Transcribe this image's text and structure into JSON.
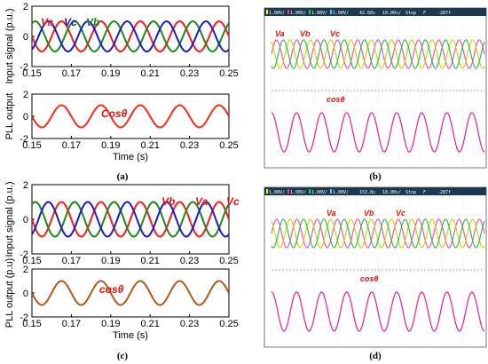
{
  "captions": [
    "(a)",
    "(b)",
    "(c)",
    "(d)"
  ],
  "colors": {
    "Va": "#ff1a1a",
    "Vb": "#1a8a1a",
    "Vc": "#1a1acc",
    "pll_a": "#ff2a1a",
    "pll_c": "#b25a1a",
    "osc_phase1": "#c8d400",
    "osc_phase2": "#ff44aa",
    "osc_phase3": "#22bb44",
    "osc_cos": "#ee1c8c",
    "osc_header": "#1b3a52",
    "label_red": "#ee1111"
  },
  "scope_headers": {
    "b": [
      "1.00V/",
      "1.00V/",
      "1.00V/",
      "1.00V/",
      "42.60s",
      "10.00s/",
      "Stop",
      "F",
      "-287f"
    ],
    "d": [
      "1.00V/",
      "1.00V/",
      "1.00V/",
      "1.00V/",
      "153.8s",
      "10.00s/",
      "Stop",
      "F",
      "-287f"
    ]
  },
  "scope_labels": {
    "b": {
      "top": [
        "Va",
        "Vb",
        "Vc"
      ],
      "bottom": "cosθ"
    },
    "d": {
      "top": [
        "Va",
        "Vb",
        "Vc"
      ],
      "bottom": "cosθ"
    }
  },
  "chart_data": [
    {
      "type": "line",
      "panel": "a-top",
      "xlabel": "",
      "ylabel": "Input signal (p.u.)",
      "xlim": [
        0.15,
        0.25
      ],
      "ylim": [
        -2,
        2
      ],
      "xticks": [
        "0.15",
        "0.17",
        "0.19",
        "0.21",
        "0.23",
        "0.25"
      ],
      "yticks": [
        "-2",
        "0",
        "2"
      ],
      "frequency_hz": 50,
      "series": [
        {
          "name": "Va",
          "amplitude": 1,
          "phase_deg": 0,
          "color": "#ff1a1a"
        },
        {
          "name": "Vb",
          "amplitude": 1,
          "phase_deg": -120,
          "color": "#1a8a1a"
        },
        {
          "name": "Vc",
          "amplitude": 1,
          "phase_deg": 120,
          "color": "#1a1acc"
        }
      ],
      "annotations": [
        "Va",
        "Vc",
        "Vb"
      ]
    },
    {
      "type": "line",
      "panel": "a-bottom",
      "xlabel": "Time (s)",
      "ylabel": "PLL output",
      "xlim": [
        0.15,
        0.25
      ],
      "ylim": [
        -2,
        2
      ],
      "xticks": [
        "0.15",
        "0.17",
        "0.19",
        "0.21",
        "0.23",
        "0.25"
      ],
      "yticks": [
        "-2",
        "0",
        "2"
      ],
      "frequency_hz": 50,
      "series": [
        {
          "name": "Cosθ",
          "amplitude": 1,
          "phase_deg": 0,
          "color": "#ff2a1a"
        }
      ],
      "annotations": [
        "Cosθ"
      ]
    },
    {
      "type": "line",
      "panel": "c-top",
      "xlabel": "",
      "ylabel": "Input signal (p.u.)",
      "xlim": [
        0.15,
        0.25
      ],
      "ylim": [
        -2,
        2
      ],
      "xticks": [
        "0.15",
        "0.17",
        "0.19",
        "0.21",
        "0.23",
        "0.25"
      ],
      "yticks": [
        "-2",
        "0",
        "2"
      ],
      "frequency_hz": 50,
      "series": [
        {
          "name": "Va",
          "amplitude": 1,
          "phase_deg": 0,
          "color": "#ff1a1a"
        },
        {
          "name": "Vb",
          "amplitude": 1,
          "phase_deg": -120,
          "color": "#1a8a1a"
        },
        {
          "name": "Vc",
          "amplitude": 1,
          "phase_deg": 120,
          "color": "#1a1acc"
        }
      ],
      "annotations": [
        "Vb",
        "Va",
        "Vc"
      ]
    },
    {
      "type": "line",
      "panel": "c-bottom",
      "xlabel": "Time (s)",
      "ylabel": "PLL output (p.u)",
      "xlim": [
        0.15,
        0.25
      ],
      "ylim": [
        -2,
        2
      ],
      "xticks": [
        "0.15",
        "0.17",
        "0.19",
        "0.21",
        "0.23",
        "0.25"
      ],
      "yticks": [
        "-2",
        "0",
        "2"
      ],
      "frequency_hz": 50,
      "series": [
        {
          "name": "cosθ",
          "amplitude": 1,
          "phase_deg": 0,
          "color": "#b25a1a"
        }
      ],
      "annotations": [
        "cosθ"
      ]
    }
  ]
}
